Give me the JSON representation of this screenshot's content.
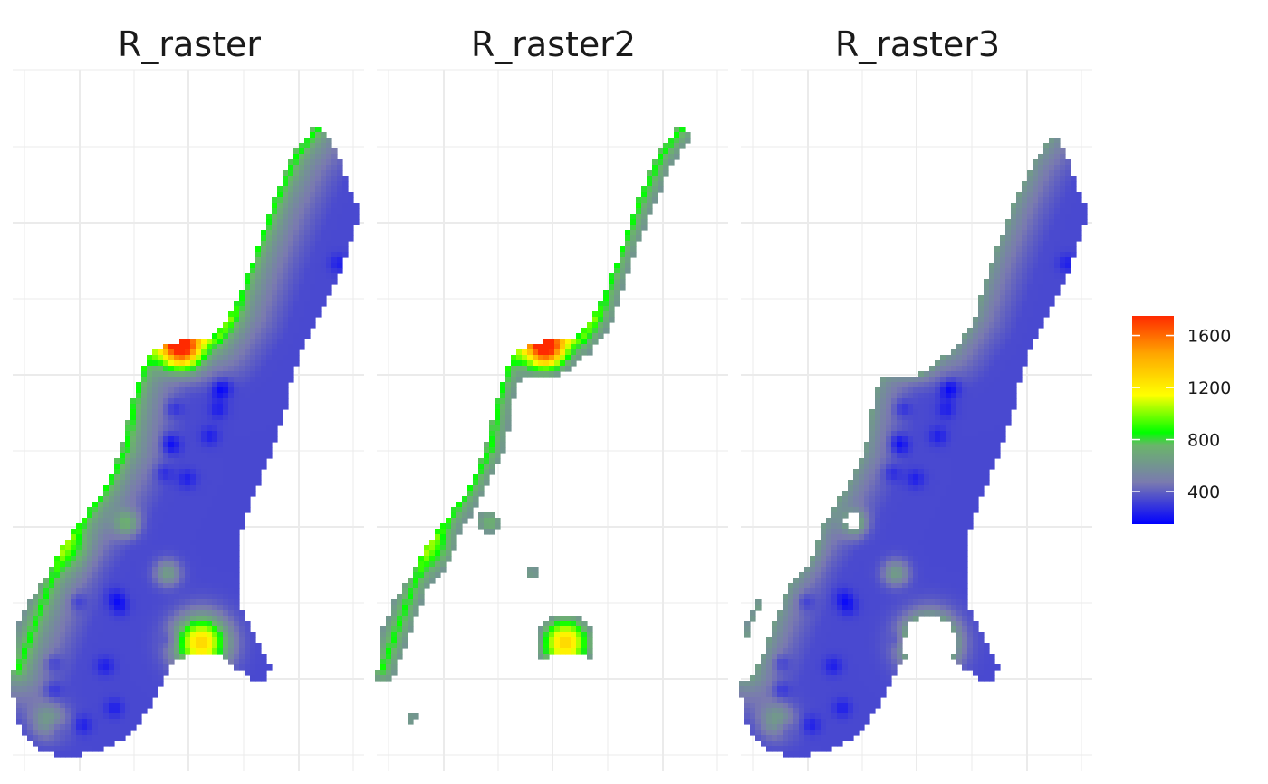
{
  "chart_data": {
    "type": "heatmap",
    "facets": [
      {
        "title": "R_raster",
        "mask": "full"
      },
      {
        "title": "R_raster2",
        "mask": "high-only"
      },
      {
        "title": "R_raster3",
        "mask": "low-only"
      }
    ],
    "legend": {
      "placement": "right",
      "min": 150,
      "max": 1750,
      "ticks": [
        400,
        800,
        1200,
        1600
      ],
      "colors": [
        "#0000ff",
        "#7a7ab0",
        "#6ab56a",
        "#00ff00",
        "#ffff00",
        "#ffa500",
        "#ff2a00"
      ],
      "stops": [
        0,
        0.2,
        0.38,
        0.44,
        0.62,
        0.82,
        1
      ]
    },
    "grid": true,
    "axis_labels_shown": false
  }
}
